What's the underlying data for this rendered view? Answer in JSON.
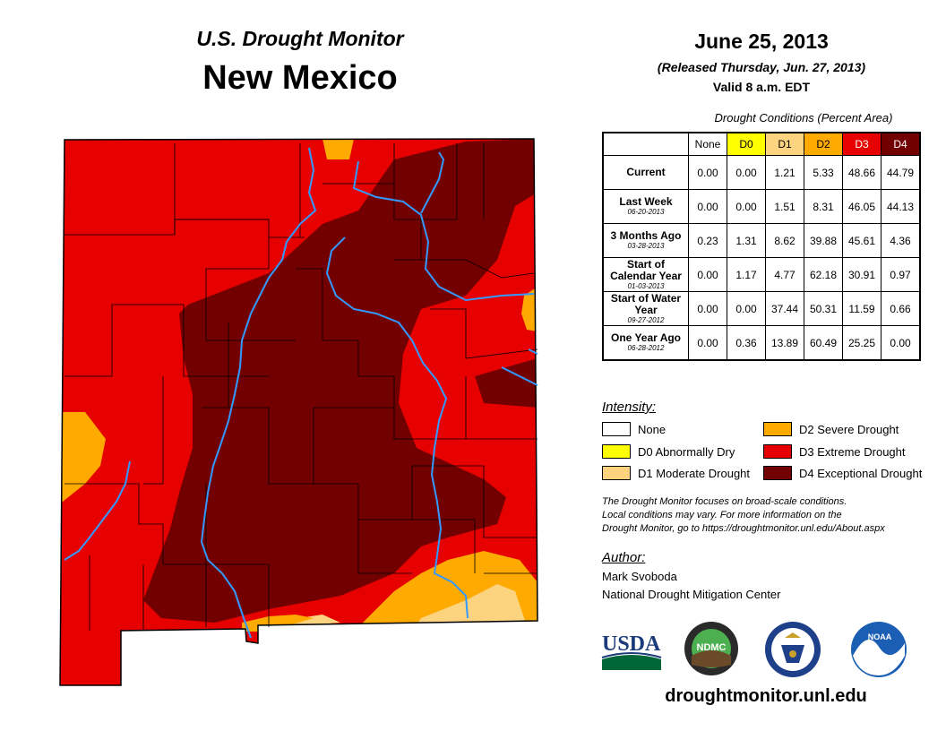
{
  "header": {
    "product": "U.S. Drought Monitor",
    "state": "New Mexico",
    "date": "June 25, 2013",
    "released": "(Released Thursday, Jun. 27, 2013)",
    "valid": "Valid 8 a.m. EDT"
  },
  "table": {
    "caption": "Drought Conditions (Percent Area)",
    "columns": [
      "None",
      "D0",
      "D1",
      "D2",
      "D3",
      "D4"
    ],
    "rows": [
      {
        "label": "Current",
        "sub": "",
        "values": [
          "0.00",
          "0.00",
          "1.21",
          "5.33",
          "48.66",
          "44.79"
        ]
      },
      {
        "label": "Last Week",
        "sub": "06-20-2013",
        "values": [
          "0.00",
          "0.00",
          "1.51",
          "8.31",
          "46.05",
          "44.13"
        ]
      },
      {
        "label": "3 Months Ago",
        "sub": "03-28-2013",
        "values": [
          "0.23",
          "1.31",
          "8.62",
          "39.88",
          "45.61",
          "4.36"
        ]
      },
      {
        "label": "Start of Calendar Year",
        "sub": "01-03-2013",
        "values": [
          "0.00",
          "1.17",
          "4.77",
          "62.18",
          "30.91",
          "0.97"
        ]
      },
      {
        "label": "Start of Water Year",
        "sub": "09-27-2012",
        "values": [
          "0.00",
          "0.00",
          "37.44",
          "50.31",
          "11.59",
          "0.66"
        ]
      },
      {
        "label": "One Year Ago",
        "sub": "06-28-2012",
        "values": [
          "0.00",
          "0.36",
          "13.89",
          "60.49",
          "25.25",
          "0.00"
        ]
      }
    ]
  },
  "legend": {
    "title": "Intensity:",
    "items": [
      {
        "label": "None",
        "color": "#ffffff"
      },
      {
        "label": "D0 Abnormally Dry",
        "color": "#ffff00"
      },
      {
        "label": "D1 Moderate Drought",
        "color": "#fcd37f"
      },
      {
        "label": "D2 Severe Drought",
        "color": "#ffaa00"
      },
      {
        "label": "D3 Extreme Drought",
        "color": "#e60000"
      },
      {
        "label": "D4 Exceptional Drought",
        "color": "#730000"
      }
    ]
  },
  "note": {
    "line1": "The Drought Monitor focuses on broad-scale conditions.",
    "line2": "Local conditions may vary. For more information on the",
    "line3": "Drought Monitor, go to https://droughtmonitor.unl.edu/About.aspx"
  },
  "author": {
    "title": "Author:",
    "name": "Mark Svoboda",
    "org": "National Drought Mitigation Center"
  },
  "logos": {
    "usda": "USDA",
    "ndmc": "NDMC",
    "noaa": "NOAA"
  },
  "website": "droughtmonitor.unl.edu",
  "colors": {
    "none": "#ffffff",
    "d0": "#ffff00",
    "d1": "#fcd37f",
    "d2": "#ffaa00",
    "d3": "#e60000",
    "d4": "#730000",
    "river": "#3399ff"
  }
}
